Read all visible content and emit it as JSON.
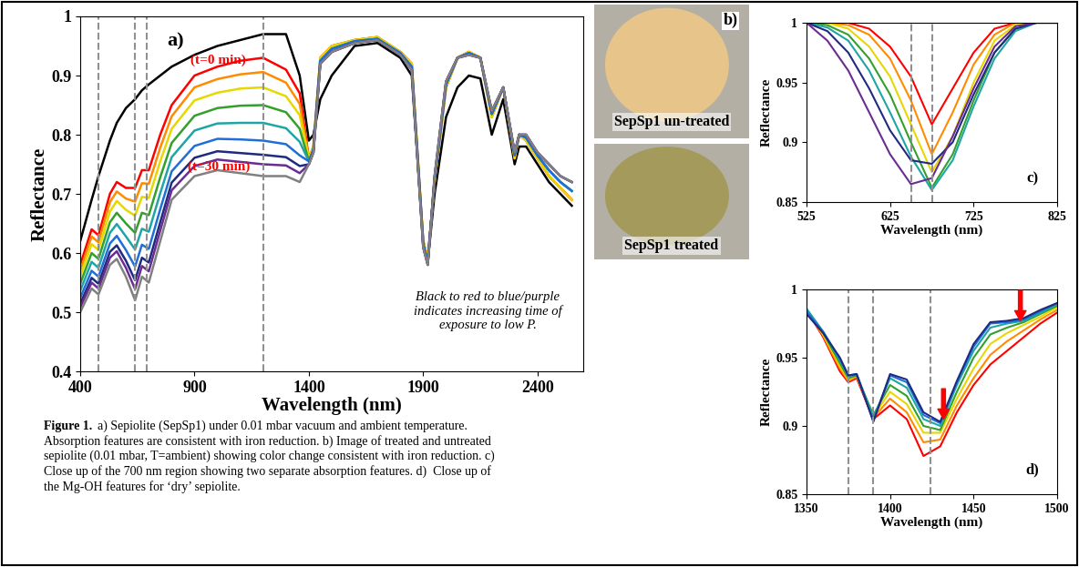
{
  "chart_data": [
    {
      "type": "line",
      "panel_label": "a)",
      "xlabel": "Wavelength (nm)",
      "ylabel": "Reflectance",
      "xlim": [
        400,
        2600
      ],
      "ylim": [
        0.4,
        1
      ],
      "xticks": [
        400,
        900,
        1400,
        1900,
        2400
      ],
      "yticks": [
        0.4,
        0.5,
        0.6,
        0.7,
        0.8,
        0.9,
        1
      ],
      "reference_lines": [
        480,
        640,
        690,
        1200
      ],
      "annotations": [
        {
          "text": "(t=0 min)",
          "color": "#ff0000"
        },
        {
          "text": "(t=30 min)",
          "color": "#ff0000"
        }
      ],
      "note": "Black to red to blue/purple\nindicates increasing time of\nexposure to low P.",
      "x": [
        400,
        450,
        480,
        530,
        560,
        600,
        640,
        670,
        700,
        750,
        800,
        900,
        1000,
        1100,
        1200,
        1300,
        1360,
        1400,
        1420,
        1450,
        1500,
        1600,
        1700,
        1800,
        1850,
        1900,
        1920,
        1950,
        2000,
        2050,
        2100,
        2150,
        2200,
        2250,
        2300,
        2320,
        2350,
        2400,
        2450,
        2500,
        2550
      ],
      "series": [
        {
          "color": "#000000",
          "values": [
            0.62,
            0.69,
            0.73,
            0.79,
            0.82,
            0.845,
            0.86,
            0.875,
            0.885,
            0.9,
            0.915,
            0.935,
            0.95,
            0.96,
            0.97,
            0.97,
            0.9,
            0.79,
            0.8,
            0.86,
            0.9,
            0.95,
            0.955,
            0.93,
            0.9,
            0.62,
            0.585,
            0.7,
            0.83,
            0.88,
            0.9,
            0.895,
            0.8,
            0.86,
            0.75,
            0.78,
            0.78,
            0.75,
            0.72,
            0.7,
            0.68
          ]
        },
        {
          "color": "#ff0000",
          "values": [
            0.58,
            0.64,
            0.63,
            0.7,
            0.72,
            0.71,
            0.71,
            0.74,
            0.74,
            0.8,
            0.85,
            0.9,
            0.915,
            0.925,
            0.93,
            0.91,
            0.87,
            0.76,
            0.78,
            0.93,
            0.95,
            0.96,
            0.965,
            0.94,
            0.92,
            0.62,
            0.59,
            0.72,
            0.88,
            0.93,
            0.94,
            0.93,
            0.83,
            0.88,
            0.76,
            0.8,
            0.79,
            0.76,
            0.73,
            0.71,
            0.69
          ]
        },
        {
          "color": "#ff8c00",
          "values": [
            0.57,
            0.628,
            0.618,
            0.686,
            0.704,
            0.692,
            0.687,
            0.718,
            0.717,
            0.778,
            0.831,
            0.88,
            0.894,
            0.902,
            0.906,
            0.888,
            0.852,
            0.76,
            0.78,
            0.93,
            0.95,
            0.96,
            0.965,
            0.94,
            0.92,
            0.62,
            0.59,
            0.72,
            0.88,
            0.93,
            0.94,
            0.93,
            0.83,
            0.88,
            0.76,
            0.8,
            0.79,
            0.76,
            0.73,
            0.71,
            0.69
          ]
        },
        {
          "color": "#e6d800",
          "values": [
            0.56,
            0.615,
            0.605,
            0.67,
            0.688,
            0.673,
            0.663,
            0.695,
            0.693,
            0.755,
            0.81,
            0.858,
            0.871,
            0.878,
            0.88,
            0.865,
            0.833,
            0.76,
            0.78,
            0.93,
            0.95,
            0.96,
            0.965,
            0.94,
            0.92,
            0.62,
            0.59,
            0.72,
            0.88,
            0.93,
            0.94,
            0.93,
            0.83,
            0.88,
            0.76,
            0.8,
            0.79,
            0.76,
            0.73,
            0.71,
            0.69
          ]
        },
        {
          "color": "#33a02c",
          "values": [
            0.548,
            0.6,
            0.59,
            0.652,
            0.668,
            0.65,
            0.634,
            0.668,
            0.664,
            0.728,
            0.786,
            0.832,
            0.845,
            0.849,
            0.85,
            0.838,
            0.81,
            0.755,
            0.775,
            0.925,
            0.945,
            0.958,
            0.962,
            0.938,
            0.915,
            0.615,
            0.585,
            0.725,
            0.885,
            0.93,
            0.938,
            0.93,
            0.835,
            0.88,
            0.765,
            0.8,
            0.795,
            0.765,
            0.74,
            0.72,
            0.705
          ]
        },
        {
          "color": "#1fa5a5",
          "values": [
            0.536,
            0.585,
            0.575,
            0.634,
            0.649,
            0.628,
            0.606,
            0.641,
            0.636,
            0.701,
            0.762,
            0.807,
            0.819,
            0.82,
            0.82,
            0.811,
            0.788,
            0.755,
            0.775,
            0.925,
            0.945,
            0.958,
            0.962,
            0.938,
            0.915,
            0.615,
            0.585,
            0.725,
            0.885,
            0.93,
            0.938,
            0.93,
            0.835,
            0.88,
            0.765,
            0.8,
            0.795,
            0.765,
            0.74,
            0.72,
            0.705
          ]
        },
        {
          "color": "#1f6fd6",
          "values": [
            0.524,
            0.57,
            0.56,
            0.616,
            0.629,
            0.605,
            0.577,
            0.614,
            0.607,
            0.674,
            0.738,
            0.781,
            0.793,
            0.792,
            0.79,
            0.784,
            0.765,
            0.755,
            0.775,
            0.925,
            0.945,
            0.958,
            0.962,
            0.938,
            0.915,
            0.615,
            0.585,
            0.725,
            0.885,
            0.93,
            0.938,
            0.93,
            0.835,
            0.88,
            0.765,
            0.8,
            0.795,
            0.765,
            0.74,
            0.72,
            0.705
          ]
        },
        {
          "color": "#1f2a80",
          "values": [
            0.514,
            0.558,
            0.548,
            0.602,
            0.613,
            0.587,
            0.554,
            0.592,
            0.584,
            0.652,
            0.719,
            0.761,
            0.772,
            0.769,
            0.766,
            0.762,
            0.747,
            0.75,
            0.77,
            0.92,
            0.94,
            0.955,
            0.96,
            0.935,
            0.91,
            0.61,
            0.58,
            0.73,
            0.89,
            0.93,
            0.935,
            0.93,
            0.84,
            0.88,
            0.77,
            0.8,
            0.8,
            0.77,
            0.75,
            0.73,
            0.72
          ]
        },
        {
          "color": "#6a2c91",
          "values": [
            0.508,
            0.55,
            0.54,
            0.592,
            0.603,
            0.575,
            0.539,
            0.578,
            0.569,
            0.638,
            0.706,
            0.747,
            0.758,
            0.754,
            0.75,
            0.748,
            0.735,
            0.75,
            0.77,
            0.92,
            0.94,
            0.955,
            0.96,
            0.935,
            0.91,
            0.61,
            0.58,
            0.73,
            0.89,
            0.93,
            0.935,
            0.93,
            0.84,
            0.88,
            0.77,
            0.8,
            0.8,
            0.77,
            0.75,
            0.73,
            0.72
          ]
        },
        {
          "color": "#808080",
          "values": [
            0.5,
            0.54,
            0.53,
            0.58,
            0.59,
            0.56,
            0.52,
            0.56,
            0.55,
            0.62,
            0.69,
            0.73,
            0.74,
            0.735,
            0.73,
            0.73,
            0.72,
            0.75,
            0.77,
            0.92,
            0.94,
            0.955,
            0.96,
            0.935,
            0.91,
            0.61,
            0.58,
            0.73,
            0.89,
            0.93,
            0.935,
            0.93,
            0.84,
            0.88,
            0.77,
            0.8,
            0.8,
            0.77,
            0.75,
            0.73,
            0.72
          ]
        }
      ]
    },
    {
      "type": "line",
      "panel_label": "c)",
      "xlabel": "Wavelength (nm)",
      "ylabel": "Reflectance",
      "xlim": [
        525,
        825
      ],
      "ylim": [
        0.85,
        1
      ],
      "xticks": [
        525,
        625,
        725,
        825
      ],
      "yticks": [
        0.85,
        0.9,
        0.95,
        1
      ],
      "reference_lines": [
        650,
        675
      ],
      "x": [
        525,
        550,
        575,
        600,
        625,
        650,
        675,
        700,
        725,
        750,
        775,
        800,
        825
      ],
      "series": [
        {
          "color": "#ff0000",
          "values": [
            1,
            1,
            1,
            0.995,
            0.98,
            0.955,
            0.915,
            0.945,
            0.975,
            0.995,
            1,
            1,
            1
          ]
        },
        {
          "color": "#ff8c00",
          "values": [
            1,
            1,
            0.998,
            0.99,
            0.97,
            0.935,
            0.89,
            0.925,
            0.965,
            0.99,
            1,
            1,
            1
          ]
        },
        {
          "color": "#e6d800",
          "values": [
            1,
            1,
            0.995,
            0.98,
            0.955,
            0.915,
            0.875,
            0.905,
            0.95,
            0.985,
            0.998,
            1,
            1
          ]
        },
        {
          "color": "#33a02c",
          "values": [
            1,
            0.998,
            0.99,
            0.97,
            0.94,
            0.9,
            0.862,
            0.89,
            0.935,
            0.975,
            0.995,
            1,
            1
          ]
        },
        {
          "color": "#1fa5a5",
          "values": [
            1,
            0.996,
            0.985,
            0.96,
            0.925,
            0.888,
            0.86,
            0.885,
            0.93,
            0.97,
            0.993,
            1,
            1
          ]
        },
        {
          "color": "#1f2a80",
          "values": [
            1,
            0.993,
            0.975,
            0.945,
            0.91,
            0.885,
            0.882,
            0.9,
            0.94,
            0.975,
            0.995,
            1,
            1
          ]
        },
        {
          "color": "#6a2c91",
          "values": [
            1,
            0.985,
            0.96,
            0.925,
            0.89,
            0.865,
            0.87,
            0.905,
            0.945,
            0.98,
            0.997,
            1,
            1
          ]
        }
      ]
    },
    {
      "type": "line",
      "panel_label": "d)",
      "xlabel": "Wavelength (nm)",
      "ylabel": "Reflectance",
      "xlim": [
        1350,
        1500
      ],
      "ylim": [
        0.85,
        1
      ],
      "xticks": [
        1350,
        1400,
        1450,
        1500
      ],
      "yticks": [
        0.85,
        0.9,
        0.95,
        1
      ],
      "reference_lines": [
        1375,
        1390,
        1424
      ],
      "arrows": [
        {
          "x": 1432,
          "y": 0.905
        },
        {
          "x": 1478,
          "y": 0.977
        }
      ],
      "x": [
        1350,
        1360,
        1370,
        1375,
        1380,
        1390,
        1400,
        1410,
        1420,
        1430,
        1440,
        1450,
        1460,
        1470,
        1480,
        1490,
        1500
      ],
      "series": [
        {
          "color": "#ff0000",
          "values": [
            0.985,
            0.965,
            0.94,
            0.932,
            0.935,
            0.905,
            0.915,
            0.905,
            0.878,
            0.885,
            0.91,
            0.93,
            0.945,
            0.955,
            0.965,
            0.975,
            0.983
          ]
        },
        {
          "color": "#ff8c00",
          "values": [
            0.985,
            0.966,
            0.942,
            0.933,
            0.936,
            0.906,
            0.92,
            0.91,
            0.888,
            0.89,
            0.915,
            0.935,
            0.952,
            0.962,
            0.97,
            0.978,
            0.985
          ]
        },
        {
          "color": "#e6d800",
          "values": [
            0.985,
            0.967,
            0.944,
            0.934,
            0.937,
            0.907,
            0.925,
            0.916,
            0.895,
            0.895,
            0.92,
            0.942,
            0.96,
            0.968,
            0.974,
            0.98,
            0.987
          ]
        },
        {
          "color": "#33a02c",
          "values": [
            0.985,
            0.968,
            0.946,
            0.935,
            0.937,
            0.908,
            0.93,
            0.922,
            0.9,
            0.897,
            0.925,
            0.95,
            0.967,
            0.972,
            0.976,
            0.982,
            0.988
          ]
        },
        {
          "color": "#1fa5a5",
          "values": [
            0.986,
            0.969,
            0.948,
            0.936,
            0.938,
            0.906,
            0.935,
            0.928,
            0.905,
            0.9,
            0.93,
            0.955,
            0.972,
            0.975,
            0.977,
            0.983,
            0.989
          ]
        },
        {
          "color": "#1f6fd6",
          "values": [
            0.984,
            0.969,
            0.949,
            0.937,
            0.938,
            0.904,
            0.937,
            0.932,
            0.908,
            0.902,
            0.932,
            0.958,
            0.975,
            0.976,
            0.978,
            0.984,
            0.99
          ]
        },
        {
          "color": "#1f2a80",
          "values": [
            0.982,
            0.968,
            0.95,
            0.937,
            0.938,
            0.903,
            0.938,
            0.934,
            0.91,
            0.903,
            0.933,
            0.96,
            0.976,
            0.977,
            0.979,
            0.985,
            0.99
          ]
        }
      ]
    }
  ],
  "images": {
    "panel_label": "b)",
    "items": [
      {
        "label": "SepSp1 un-treated",
        "color": "#e6c48a"
      },
      {
        "label": "SepSp1 treated",
        "color": "#a39a5c"
      }
    ]
  },
  "caption": {
    "title": "Figure 1.",
    "lines": [
      "a) Sepiolite (SepSp1) under 0.01 mbar vacuum and ambient temperature.",
      "Absorption features are consistent with iron reduction. b) Image of treated and untreated",
      "sepiolite (0.01 mbar, T=ambient) showing color change consistent with iron reduction. c)",
      "Close up of the 700 nm region showing two separate absorption features. d)  Close up of",
      "the Mg-OH features for ‘dry’ sepiolite."
    ]
  }
}
